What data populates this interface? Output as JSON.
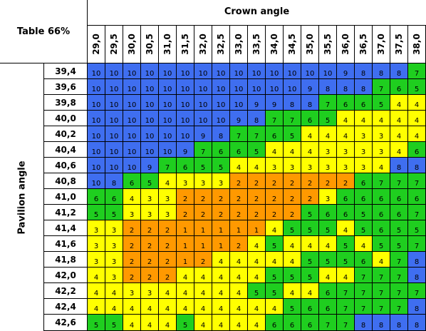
{
  "table_label": "Table 66%",
  "crown_title": "Crown angle",
  "pavilion_title": "Pavilion angle",
  "crown_angles": [
    "29,0",
    "29,5",
    "30,0",
    "30,5",
    "31,0",
    "31,5",
    "32,0",
    "32,5",
    "33,0",
    "33,5",
    "34,0",
    "34,5",
    "35,0",
    "35,5",
    "36,0",
    "36,5",
    "37,0",
    "37,5",
    "38,0"
  ],
  "pavilion_angles": [
    "39,4",
    "39,6",
    "39,8",
    "40,0",
    "40,2",
    "40,4",
    "40,6",
    "40,8",
    "41,0",
    "41,2",
    "41,4",
    "41,6",
    "41,8",
    "42,0",
    "42,2",
    "42,4",
    "42,6"
  ],
  "colors": {
    "10": "#3f6ef0",
    "9": "#3f6ef0",
    "8": "#3f6ef0",
    "7": "#1fce1f",
    "6": "#1fce1f",
    "5": "#1fce1f",
    "4": "#ffff00",
    "3": "#ffff00",
    "2": "#ff9900",
    "1": "#ff9900"
  },
  "grid_values": [
    [
      10,
      10,
      10,
      10,
      10,
      10,
      10,
      10,
      10,
      10,
      10,
      10,
      10,
      10,
      9,
      8,
      8,
      8,
      7
    ],
    [
      10,
      10,
      10,
      10,
      10,
      10,
      10,
      10,
      10,
      10,
      10,
      10,
      9,
      8,
      8,
      8,
      7,
      6,
      5
    ],
    [
      10,
      10,
      10,
      10,
      10,
      10,
      10,
      10,
      10,
      9,
      9,
      8,
      8,
      7,
      6,
      6,
      5,
      4,
      4
    ],
    [
      10,
      10,
      10,
      10,
      10,
      10,
      10,
      10,
      9,
      8,
      7,
      7,
      6,
      5,
      4,
      4,
      4,
      4,
      4
    ],
    [
      10,
      10,
      10,
      10,
      10,
      10,
      9,
      8,
      7,
      7,
      6,
      5,
      4,
      4,
      4,
      3,
      3,
      4,
      4
    ],
    [
      10,
      10,
      10,
      10,
      10,
      9,
      7,
      6,
      6,
      5,
      4,
      4,
      4,
      3,
      3,
      3,
      3,
      4,
      6
    ],
    [
      10,
      10,
      10,
      9,
      7,
      6,
      5,
      5,
      4,
      4,
      3,
      3,
      3,
      3,
      3,
      3,
      4,
      8,
      8
    ],
    [
      10,
      8,
      6,
      5,
      4,
      3,
      3,
      3,
      2,
      2,
      2,
      2,
      2,
      2,
      2,
      6,
      7,
      7,
      7
    ],
    [
      6,
      6,
      4,
      3,
      3,
      2,
      2,
      2,
      2,
      2,
      2,
      2,
      2,
      3,
      6,
      6,
      6,
      6,
      6
    ],
    [
      5,
      5,
      3,
      3,
      3,
      2,
      2,
      2,
      2,
      2,
      2,
      2,
      5,
      6,
      6,
      5,
      6,
      6,
      7
    ],
    [
      3,
      3,
      2,
      2,
      2,
      1,
      1,
      1,
      1,
      1,
      4,
      5,
      5,
      5,
      4,
      5,
      6,
      5,
      5
    ],
    [
      3,
      3,
      2,
      2,
      2,
      1,
      1,
      1,
      2,
      4,
      5,
      4,
      4,
      4,
      5,
      4,
      5,
      5,
      7
    ],
    [
      3,
      3,
      2,
      2,
      2,
      1,
      2,
      4,
      4,
      4,
      4,
      4,
      5,
      5,
      5,
      6,
      4,
      7,
      8
    ],
    [
      4,
      3,
      2,
      2,
      2,
      4,
      4,
      4,
      4,
      4,
      5,
      5,
      5,
      4,
      4,
      7,
      7,
      7,
      8
    ],
    [
      4,
      4,
      3,
      3,
      4,
      4,
      4,
      4,
      4,
      5,
      5,
      4,
      4,
      6,
      7,
      7,
      7,
      7,
      7
    ],
    [
      4,
      4,
      4,
      4,
      4,
      4,
      4,
      4,
      4,
      4,
      4,
      5,
      6,
      6,
      7,
      7,
      7,
      7,
      8
    ],
    [
      5,
      5,
      4,
      4,
      4,
      5,
      4,
      4,
      4,
      4,
      6,
      6,
      6,
      7,
      7,
      8,
      8,
      8,
      8
    ]
  ]
}
